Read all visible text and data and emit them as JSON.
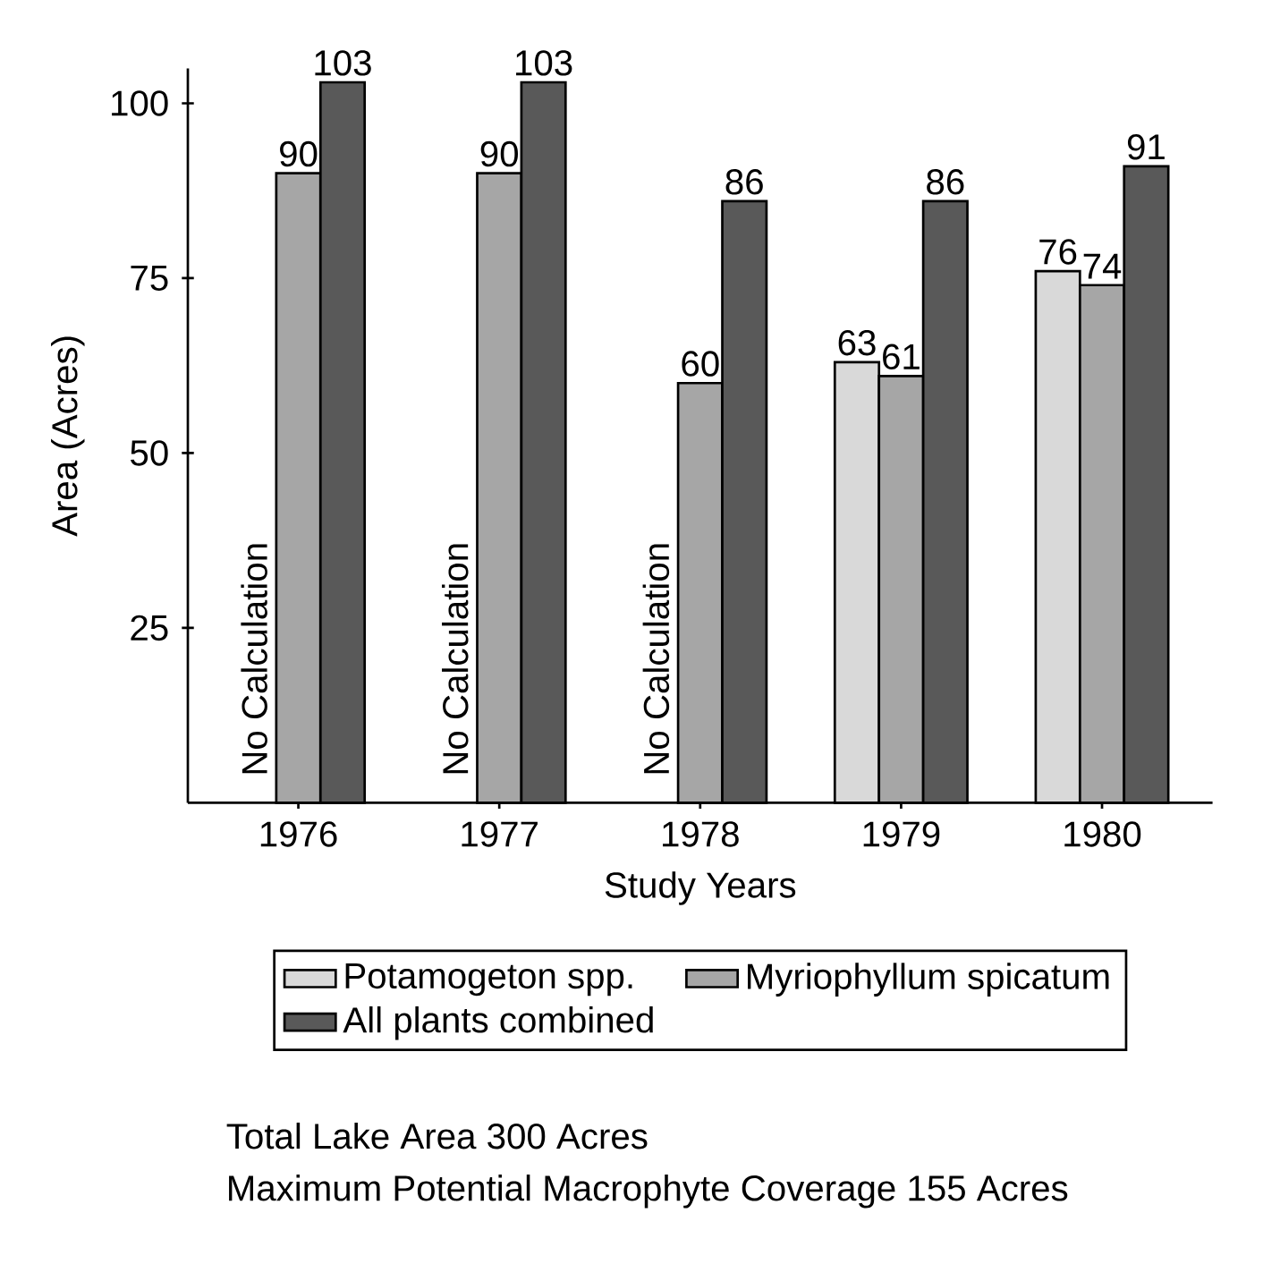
{
  "chart_data": {
    "type": "bar",
    "xlabel": "Study Years",
    "ylabel": "Area (Acres)",
    "categories": [
      "1976",
      "1977",
      "1978",
      "1979",
      "1980"
    ],
    "series": [
      {
        "name": "Potamogeton spp.",
        "color": "#d9d9d9",
        "values": [
          null,
          null,
          null,
          63,
          76
        ]
      },
      {
        "name": "Myriophyllum spicatum",
        "color": "#a6a6a6",
        "values": [
          90,
          90,
          60,
          61,
          74
        ]
      },
      {
        "name": "All plants combined",
        "color": "#595959",
        "values": [
          103,
          103,
          86,
          86,
          91
        ]
      }
    ],
    "ylim": [
      0,
      105
    ],
    "yticks": [
      25,
      50,
      75,
      100
    ],
    "data_labels": true,
    "legend": "bottom",
    "annotations": [
      "No Calculation",
      "No Calculation",
      "No Calculation",
      "Total Lake Area 300 Acres",
      "Maximum Potential Macrophyte Coverage 155 Acres"
    ]
  }
}
